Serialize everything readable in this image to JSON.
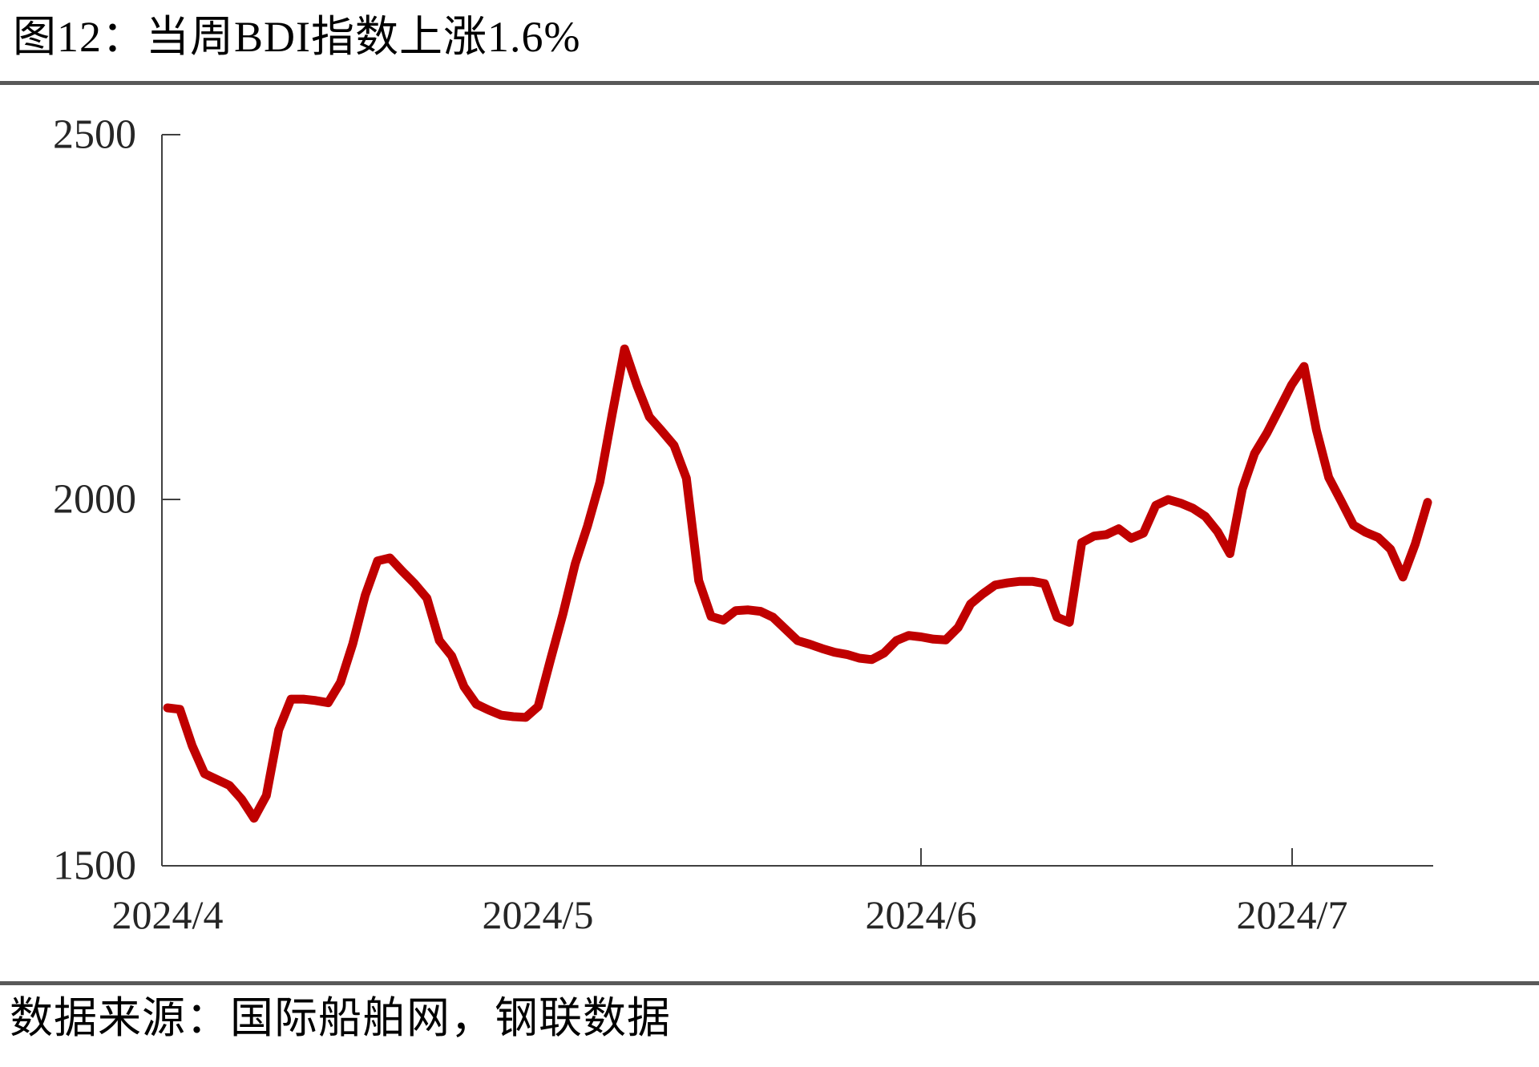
{
  "figure": {
    "title": "图12：当周BDI指数上涨1.6%",
    "source_note": "数据来源：国际船舶网，钢联数据"
  },
  "chart_data": {
    "type": "line",
    "title": "当周BDI指数上涨1.6%",
    "series_name": "BDI指数",
    "line_color": "#c00000",
    "xlabel": "",
    "ylabel": "",
    "ylim": [
      1500,
      2500
    ],
    "grid": false,
    "legend": "none",
    "y_tick_labels": [
      "2500",
      "2000",
      "1500"
    ],
    "x_tick_labels": [
      "2024/4",
      "2024/5",
      "2024/6",
      "2024/7"
    ],
    "dates": [
      "4/1",
      "4/2",
      "4/3",
      "4/4",
      "4/5",
      "4/6",
      "4/7",
      "4/8",
      "4/9",
      "4/10",
      "4/11",
      "4/12",
      "4/13",
      "4/14",
      "4/15",
      "4/16",
      "4/17",
      "4/18",
      "4/19",
      "4/20",
      "4/21",
      "4/22",
      "4/23",
      "4/24",
      "4/25",
      "4/26",
      "4/27",
      "4/28",
      "4/29",
      "4/30",
      "5/1",
      "5/2",
      "5/3",
      "5/4",
      "5/5",
      "5/6",
      "5/7",
      "5/8",
      "5/9",
      "5/10",
      "5/11",
      "5/12",
      "5/13",
      "5/14",
      "5/15",
      "5/16",
      "5/17",
      "5/18",
      "5/19",
      "5/20",
      "5/21",
      "5/22",
      "5/23",
      "5/24",
      "5/25",
      "5/26",
      "5/27",
      "5/28",
      "5/29",
      "5/30",
      "5/31",
      "6/1",
      "6/2",
      "6/3",
      "6/4",
      "6/5",
      "6/6",
      "6/7",
      "6/8",
      "6/9",
      "6/10",
      "6/11",
      "6/12",
      "6/13",
      "6/14",
      "6/15",
      "6/16",
      "6/17",
      "6/18",
      "6/19",
      "6/20",
      "6/21",
      "6/22",
      "6/23",
      "6/24",
      "6/25",
      "6/26",
      "6/27",
      "6/28",
      "6/29",
      "6/30",
      "7/1",
      "7/2",
      "7/3",
      "7/4",
      "7/5",
      "7/6",
      "7/7",
      "7/8",
      "7/9",
      "7/10",
      "7/11",
      "7/12"
    ],
    "values": [
      1716,
      1714,
      1664,
      1626,
      1618,
      1610,
      1591,
      1565,
      1596,
      1686,
      1728,
      1728,
      1726,
      1723,
      1751,
      1804,
      1870,
      1917,
      1921,
      1903,
      1886,
      1866,
      1808,
      1787,
      1745,
      1721,
      1713,
      1706,
      1704,
      1703,
      1718,
      1782,
      1844,
      1913,
      1965,
      2025,
      2118,
      2207,
      2157,
      2114,
      2095,
      2075,
      2030,
      1890,
      1841,
      1836,
      1849,
      1850,
      1848,
      1840,
      1824,
      1808,
      1803,
      1797,
      1792,
      1789,
      1784,
      1782,
      1791,
      1808,
      1815,
      1813,
      1810,
      1809,
      1826,
      1858,
      1872,
      1884,
      1887,
      1889,
      1889,
      1886,
      1840,
      1833,
      1942,
      1951,
      1953,
      1961,
      1948,
      1955,
      1993,
      2001,
      1996,
      1989,
      1978,
      1957,
      1927,
      2015,
      2064,
      2092,
      2125,
      2158,
      2183,
      2096,
      2031,
      1999,
      1966,
      1956,
      1949,
      1933,
      1895,
      1940,
      1997
    ]
  }
}
